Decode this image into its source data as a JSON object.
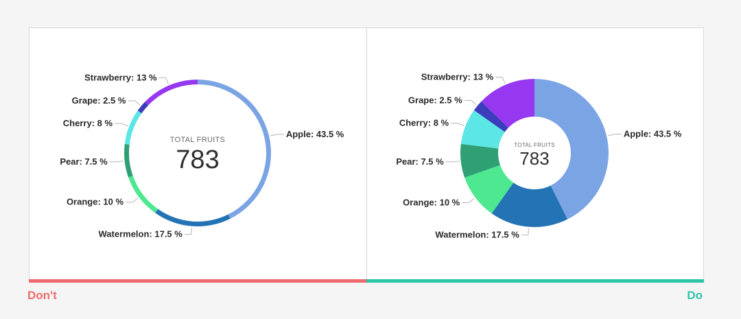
{
  "chart_data": [
    {
      "type": "pie",
      "variant": "thin-ring",
      "center_title": "TOTAL FRUITS",
      "center_value": "783",
      "slices": [
        {
          "name": "Apple",
          "value": 43.5,
          "label": "Apple: 43.5 %",
          "color": "#7ba4e4"
        },
        {
          "name": "Watermelon",
          "value": 17.5,
          "label": "Watermelon: 17.5 %",
          "color": "#2474b5"
        },
        {
          "name": "Orange",
          "value": 10,
          "label": "Orange: 10 %",
          "color": "#4de890"
        },
        {
          "name": "Pear",
          "value": 7.5,
          "label": "Pear: 7.5 %",
          "color": "#2ea074"
        },
        {
          "name": "Cherry",
          "value": 8,
          "label": "Cherry: 8 %",
          "color": "#5ce6e6"
        },
        {
          "name": "Grape",
          "value": 2.5,
          "label": "Grape: 2.5 %",
          "color": "#3b3dbb"
        },
        {
          "name": "Strawberry",
          "value": 13,
          "label": "Strawberry: 13 %",
          "color": "#9538f0"
        }
      ]
    },
    {
      "type": "pie",
      "variant": "thick-donut",
      "center_title": "TOTAL FRUITS",
      "center_value": "783",
      "slices": [
        {
          "name": "Apple",
          "value": 43.5,
          "label": "Apple: 43.5 %",
          "color": "#7ba4e4"
        },
        {
          "name": "Watermelon",
          "value": 17.5,
          "label": "Watermelon: 17.5 %",
          "color": "#2474b5"
        },
        {
          "name": "Orange",
          "value": 10,
          "label": "Orange: 10 %",
          "color": "#4de890"
        },
        {
          "name": "Pear",
          "value": 7.5,
          "label": "Pear: 7.5 %",
          "color": "#2ea074"
        },
        {
          "name": "Cherry",
          "value": 8,
          "label": "Cherry: 8 %",
          "color": "#5ce6e6"
        },
        {
          "name": "Grape",
          "value": 2.5,
          "label": "Grape: 2.5 %",
          "color": "#3b3dbb"
        },
        {
          "name": "Strawberry",
          "value": 13,
          "label": "Strawberry: 13 %",
          "color": "#9538f0"
        }
      ]
    }
  ],
  "verdicts": {
    "left": "Don't",
    "right": "Do",
    "left_color": "#ef6b6b",
    "right_color": "#2ec4a7"
  }
}
